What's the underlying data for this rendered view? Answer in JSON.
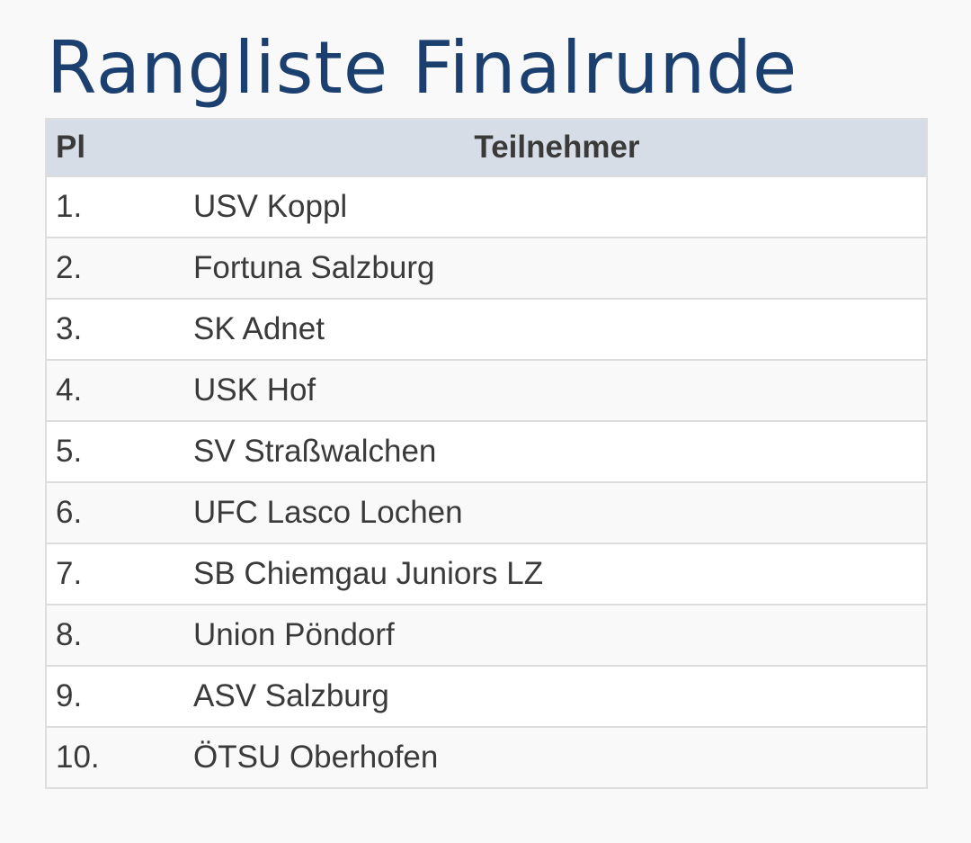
{
  "title": "Rangliste Finalrunde",
  "table": {
    "headers": {
      "place": "Pl",
      "participant": "Teilnehmer"
    },
    "rows": [
      {
        "place": "1.",
        "team": "USV Koppl"
      },
      {
        "place": "2.",
        "team": "Fortuna Salzburg"
      },
      {
        "place": "3.",
        "team": "SK Adnet"
      },
      {
        "place": "4.",
        "team": "USK Hof"
      },
      {
        "place": "5.",
        "team": "SV Straßwalchen"
      },
      {
        "place": "6.",
        "team": "UFC Lasco Lochen"
      },
      {
        "place": "7.",
        "team": "SB Chiemgau Juniors LZ"
      },
      {
        "place": "8.",
        "team": "Union Pöndorf"
      },
      {
        "place": "9.",
        "team": "ASV Salzburg"
      },
      {
        "place": "10.",
        "team": "ÖTSU Oberhofen"
      }
    ]
  },
  "colors": {
    "title": "#1b3f6f",
    "header_background": "#d7dde6",
    "text": "#3a3a3a",
    "page_background": "#f9f9f9"
  }
}
